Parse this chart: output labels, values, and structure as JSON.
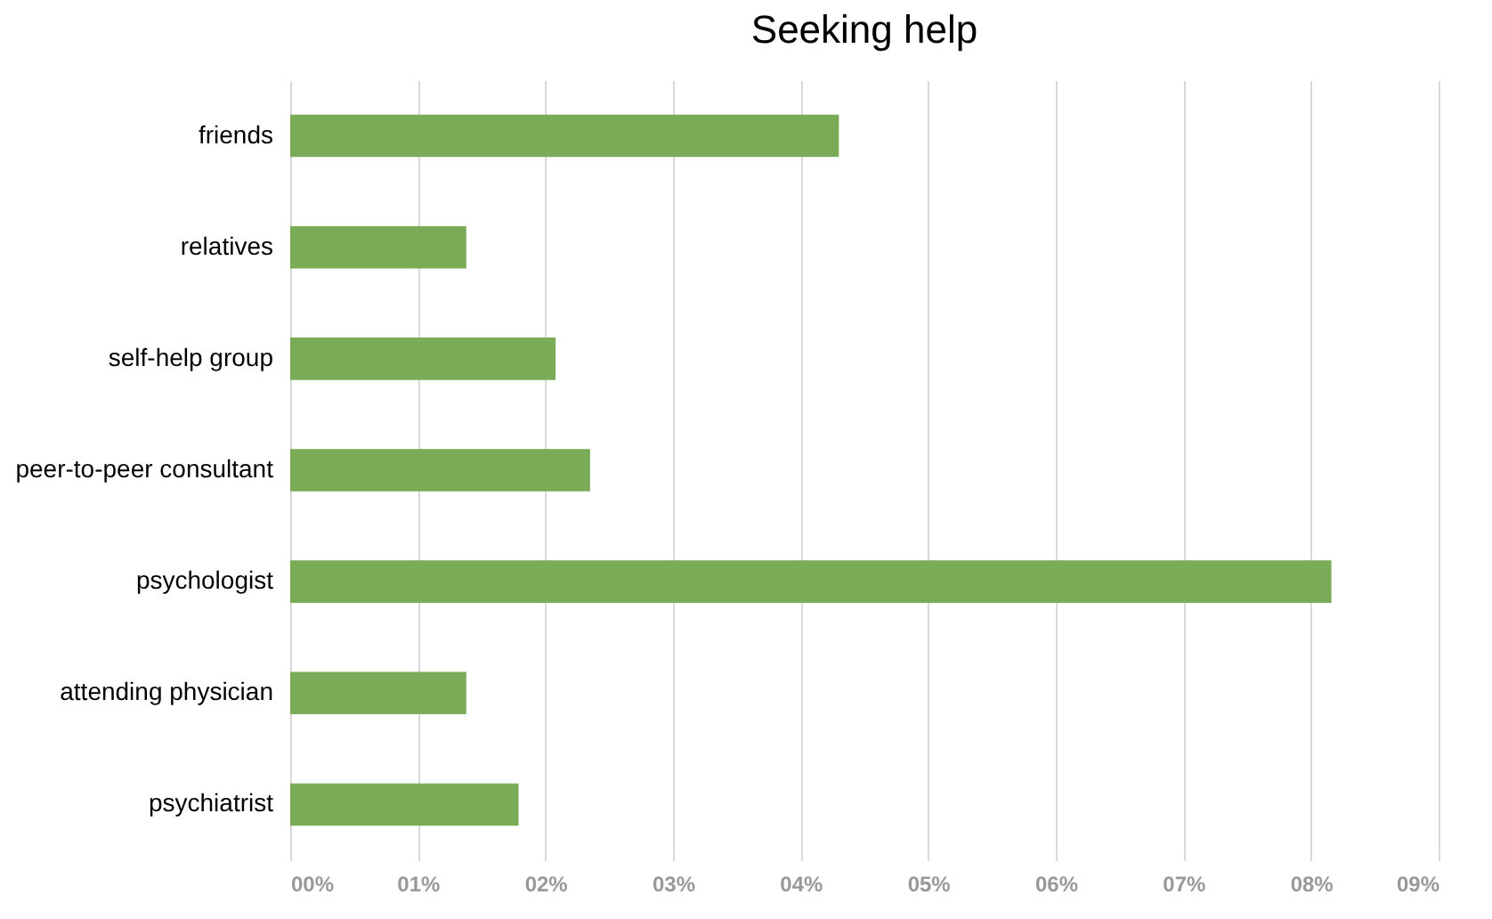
{
  "chart_data": {
    "type": "bar",
    "orientation": "horizontal",
    "title": "Seeking help",
    "categories": [
      "friends",
      "relatives",
      "self-help group",
      "peer-to-peer consultant",
      "psychologist",
      "attending physician",
      "psychiatrist"
    ],
    "values": [
      4.3,
      1.38,
      2.08,
      2.35,
      8.16,
      1.38,
      1.79
    ],
    "color": "#7aab57",
    "xlim": [
      0,
      9
    ],
    "xticks": [
      {
        "value": 0,
        "label": "00%"
      },
      {
        "value": 1,
        "label": "01%"
      },
      {
        "value": 2,
        "label": "02%"
      },
      {
        "value": 3,
        "label": "03%"
      },
      {
        "value": 4,
        "label": "04%"
      },
      {
        "value": 5,
        "label": "05%"
      },
      {
        "value": 6,
        "label": "06%"
      },
      {
        "value": 7,
        "label": "07%"
      },
      {
        "value": 8,
        "label": "08%"
      },
      {
        "value": 9,
        "label": "09%"
      }
    ],
    "grid": "x"
  }
}
